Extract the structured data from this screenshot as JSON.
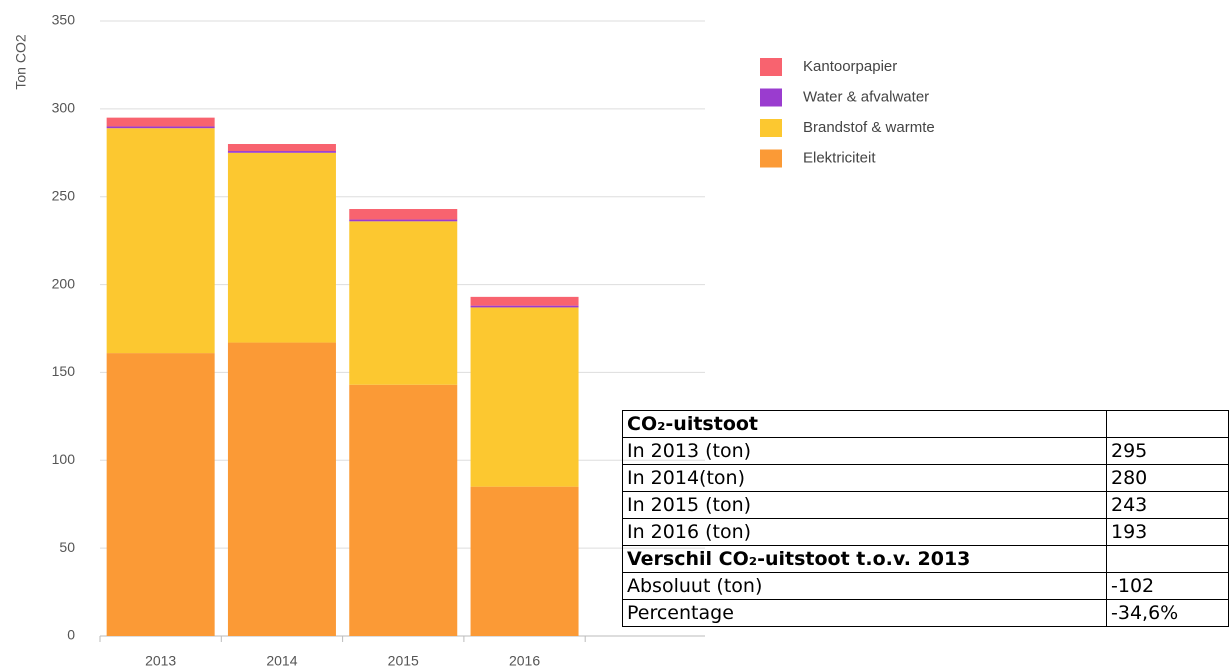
{
  "chart_data": {
    "type": "stacked_bar",
    "ylabel": "Ton CO2",
    "categories": [
      "2013",
      "2014",
      "2015",
      "2016"
    ],
    "series": [
      {
        "name": "Elektriciteit",
        "color": "#fb9a36",
        "values": [
          161,
          167,
          143,
          85
        ]
      },
      {
        "name": "Brandstof & warmte",
        "color": "#fcc830",
        "values": [
          128,
          108,
          93,
          102
        ]
      },
      {
        "name": "Water & afvalwater",
        "color": "#9a3ccf",
        "values": [
          1,
          1,
          1,
          1
        ]
      },
      {
        "name": "Kantoorpapier",
        "color": "#f8636f",
        "values": [
          5,
          4,
          6,
          5
        ]
      }
    ],
    "ylim": [
      0,
      350
    ],
    "yticks": [
      0,
      50,
      100,
      150,
      200,
      250,
      300,
      350
    ],
    "grid": true,
    "legend": "right"
  },
  "table": {
    "rows": [
      [
        "CO₂-uitstoot"
      ],
      [
        "In 2013 (ton)",
        "295"
      ],
      [
        "In 2014(ton)",
        "280"
      ],
      [
        "In 2015 (ton)",
        "243"
      ],
      [
        "In 2016 (ton)",
        "193"
      ],
      [
        "Verschil CO₂-uitstoot t.o.v. 2013"
      ],
      [
        "Absoluut (ton)",
        "-102"
      ],
      [
        "Percentage",
        "-34,6%"
      ]
    ]
  }
}
